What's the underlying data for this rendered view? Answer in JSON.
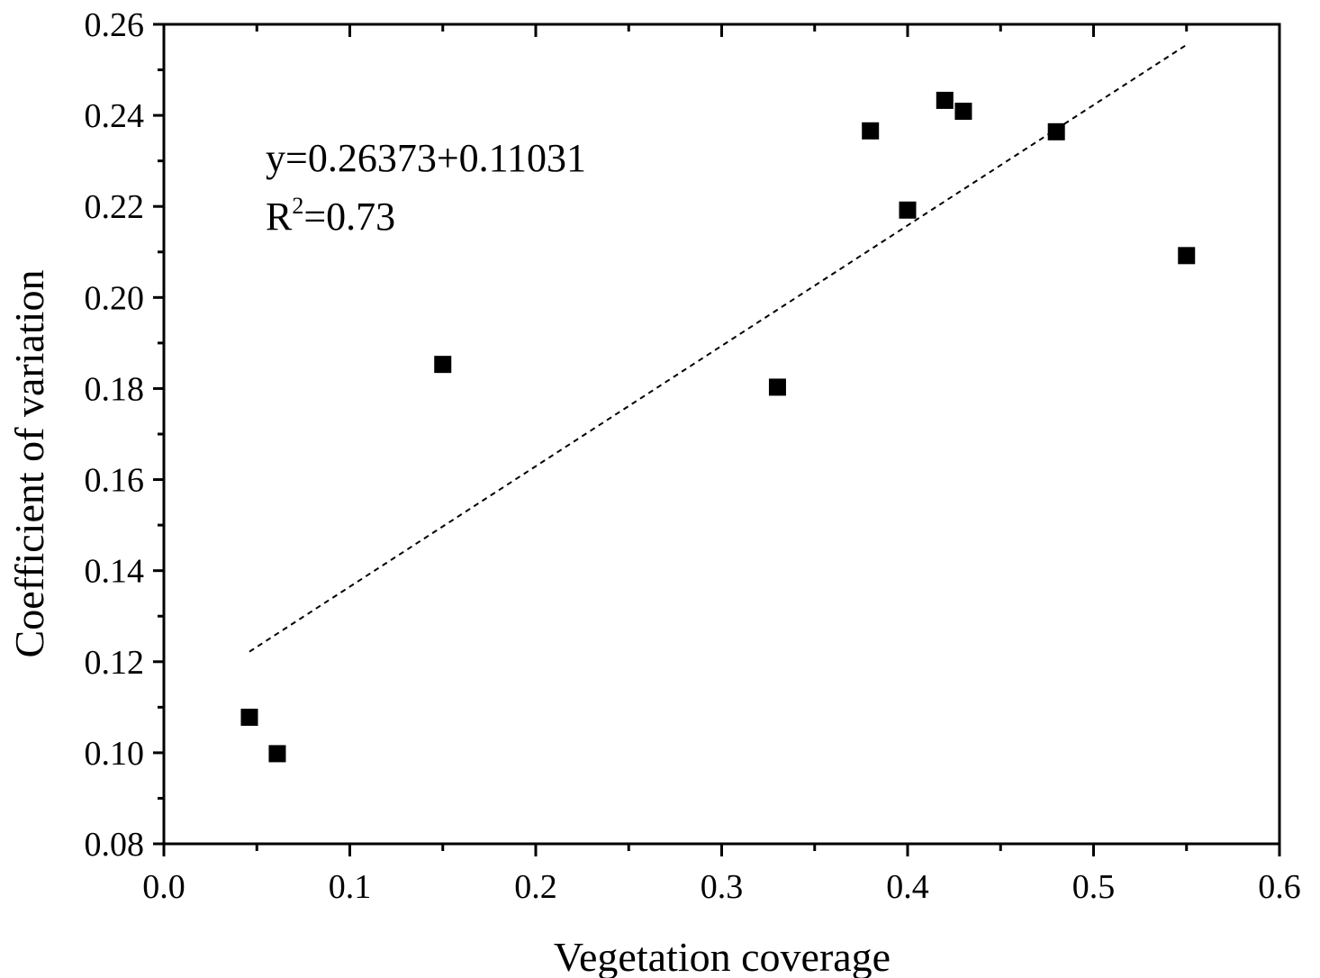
{
  "chart_data": {
    "type": "scatter",
    "xlabel": "Vegetation coverage",
    "ylabel": "Coefficient of variation",
    "xlim": [
      0.0,
      0.6
    ],
    "ylim": [
      0.08,
      0.26
    ],
    "x_ticks": [
      "0.0",
      "0.1",
      "0.2",
      "0.3",
      "0.4",
      "0.5",
      "0.6"
    ],
    "y_ticks": [
      "0.08",
      "0.10",
      "0.12",
      "0.14",
      "0.16",
      "0.18",
      "0.20",
      "0.22",
      "0.24",
      "0.26"
    ],
    "grid": false,
    "points": [
      {
        "x": 0.046,
        "y": 0.1078
      },
      {
        "x": 0.061,
        "y": 0.0998
      },
      {
        "x": 0.15,
        "y": 0.1853
      },
      {
        "x": 0.33,
        "y": 0.1803
      },
      {
        "x": 0.38,
        "y": 0.2366
      },
      {
        "x": 0.4,
        "y": 0.2192
      },
      {
        "x": 0.42,
        "y": 0.2433
      },
      {
        "x": 0.43,
        "y": 0.2409
      },
      {
        "x": 0.48,
        "y": 0.2364
      },
      {
        "x": 0.55,
        "y": 0.2092
      }
    ],
    "trend_line": {
      "style": "dashed",
      "x": [
        0.046,
        0.55
      ],
      "y": [
        0.1222,
        0.2555
      ]
    },
    "annotation": {
      "equation": "y=0.26373+0.11031",
      "r2_prefix": "R",
      "r2_sup": "2",
      "r2_value": "=0.73"
    }
  }
}
